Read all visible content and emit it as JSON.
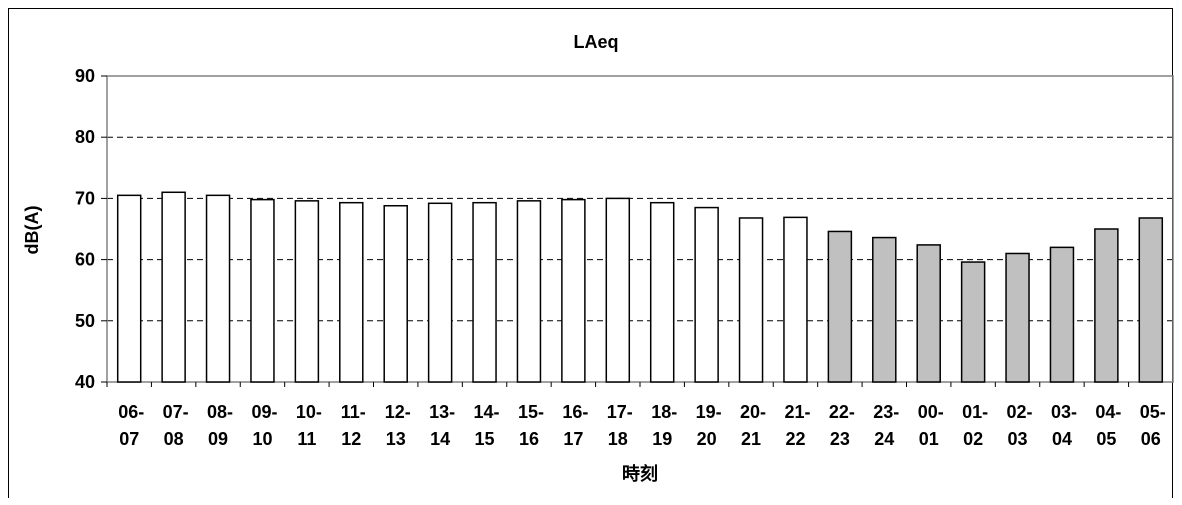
{
  "chart_data": {
    "type": "bar",
    "title": "LAeq",
    "xlabel": "時刻",
    "ylabel": "dB(A)",
    "ylim": [
      40,
      90
    ],
    "yticks": [
      40,
      50,
      60,
      70,
      80,
      90
    ],
    "grid": "dashed horizontal",
    "categories": [
      [
        "06-",
        "07"
      ],
      [
        "07-",
        "08"
      ],
      [
        "08-",
        "09"
      ],
      [
        "09-",
        "10"
      ],
      [
        "10-",
        "11"
      ],
      [
        "11-",
        "12"
      ],
      [
        "12-",
        "13"
      ],
      [
        "13-",
        "14"
      ],
      [
        "14-",
        "15"
      ],
      [
        "15-",
        "16"
      ],
      [
        "16-",
        "17"
      ],
      [
        "17-",
        "18"
      ],
      [
        "18-",
        "19"
      ],
      [
        "19-",
        "20"
      ],
      [
        "20-",
        "21"
      ],
      [
        "21-",
        "22"
      ],
      [
        "22-",
        "23"
      ],
      [
        "23-",
        "24"
      ],
      [
        "00-",
        "01"
      ],
      [
        "01-",
        "02"
      ],
      [
        "02-",
        "03"
      ],
      [
        "03-",
        "04"
      ],
      [
        "04-",
        "05"
      ],
      [
        "05-",
        "06"
      ]
    ],
    "values": [
      70.5,
      71.0,
      70.5,
      69.8,
      69.6,
      69.3,
      68.8,
      69.2,
      69.3,
      69.6,
      69.8,
      70.0,
      69.3,
      68.5,
      66.8,
      66.9,
      64.6,
      63.6,
      62.4,
      59.6,
      61.0,
      62.0,
      65.0,
      66.8
    ],
    "night_start_index": 16,
    "colors": {
      "day_fill": "#ffffff",
      "night_fill": "#c0c0c0",
      "stroke": "#000000",
      "plot_border": "#808080",
      "grid": "#000000"
    }
  }
}
